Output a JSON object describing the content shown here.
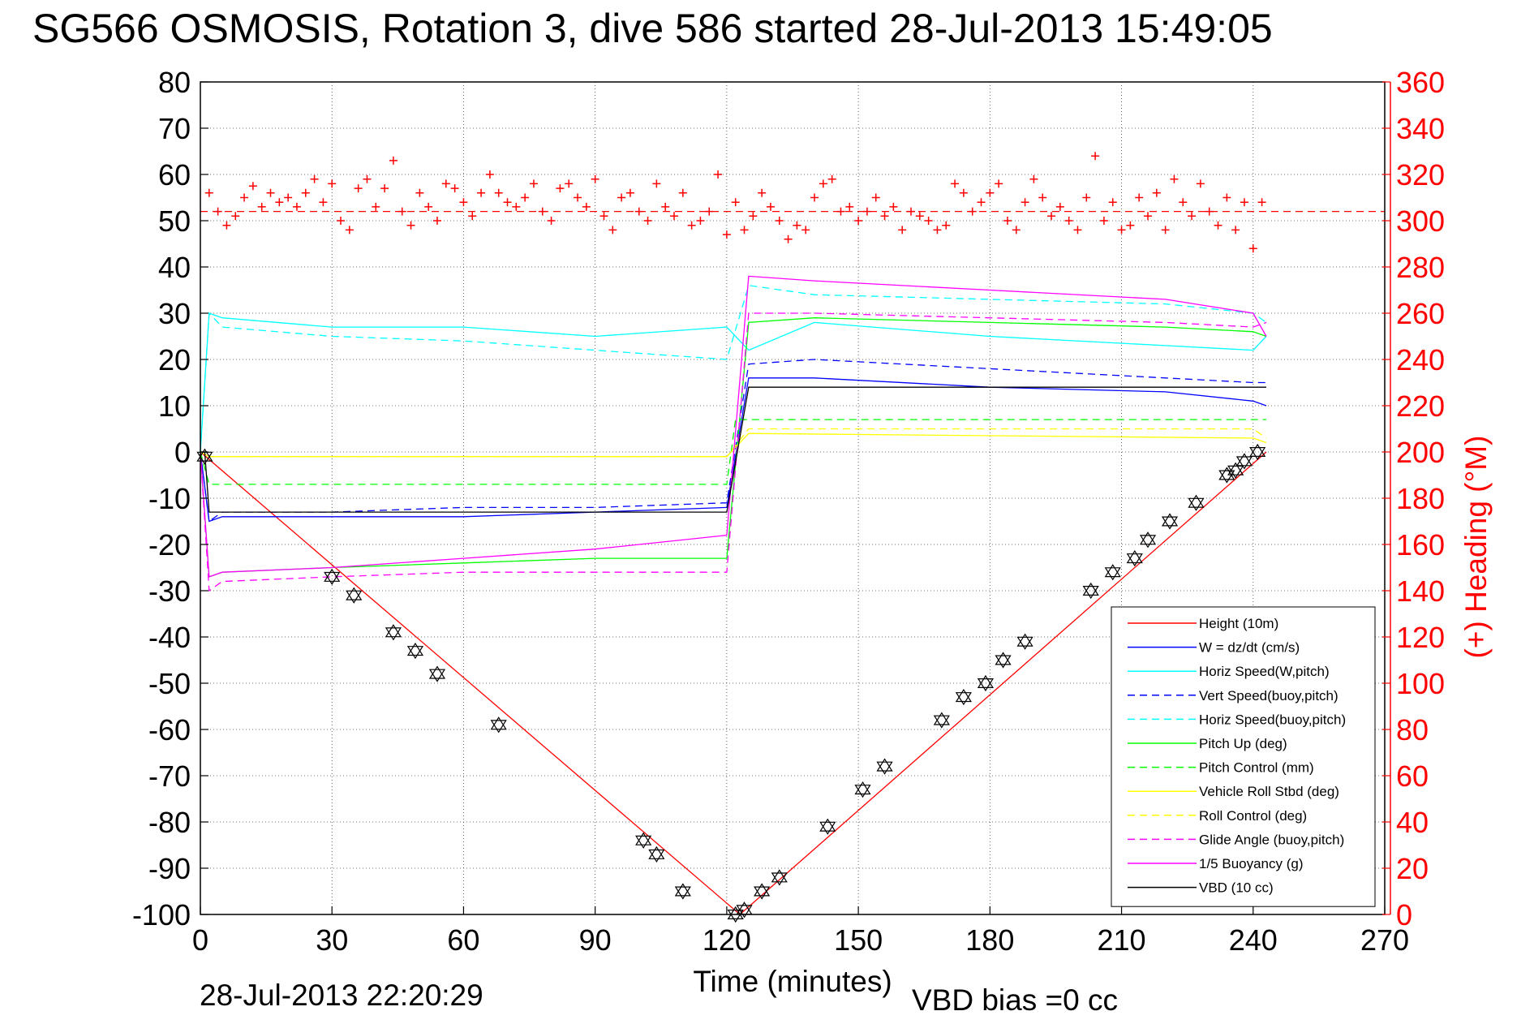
{
  "title": "SG566 OSMOSIS, Rotation 3, dive 586 started 28-Jul-2013 15:49:05",
  "footer_left": "28-Jul-2013 22:20:29",
  "footer_right": "VBD bias =0 cc",
  "chart_data": {
    "type": "line",
    "xlabel": "Time (minutes)",
    "ylabel_left": "",
    "ylabel_right": "(+) Heading (°M)",
    "xlim": [
      0,
      270
    ],
    "ylim_left": [
      -100,
      80
    ],
    "ylim_right": [
      0,
      360
    ],
    "xticks": [
      0,
      30,
      60,
      90,
      120,
      150,
      180,
      210,
      240,
      270
    ],
    "yticks_left": [
      80,
      70,
      60,
      50,
      40,
      30,
      20,
      10,
      0,
      -10,
      -20,
      -30,
      -40,
      -50,
      -60,
      -70,
      -80,
      -90,
      -100
    ],
    "yticks_right": [
      360,
      340,
      320,
      300,
      280,
      260,
      240,
      220,
      200,
      180,
      160,
      140,
      120,
      100,
      80,
      60,
      40,
      20,
      0
    ],
    "grid": true,
    "legend_position": "bottom-right",
    "colors": {
      "red": "#ff0000",
      "blue": "#0000ff",
      "cyan": "#00ffff",
      "green": "#00ff00",
      "yellow": "#ffff00",
      "magenta": "#ff00ff",
      "black": "#000000"
    },
    "series": [
      {
        "name": "Height (10m)",
        "color": "#ff0000",
        "dash": "solid",
        "x": [
          0,
          123,
          243
        ],
        "y": [
          0,
          -100,
          0
        ]
      },
      {
        "name": "W = dz/dt (cm/s)",
        "color": "#0000ff",
        "dash": "solid",
        "x": [
          0,
          2,
          5,
          30,
          60,
          90,
          120,
          125,
          140,
          180,
          220,
          240,
          243
        ],
        "y": [
          0,
          -15,
          -14,
          -14,
          -14,
          -13,
          -12,
          16,
          16,
          14,
          13,
          11,
          10
        ]
      },
      {
        "name": "Horiz Speed(W,pitch)",
        "color": "#00ffff",
        "dash": "solid",
        "x": [
          0,
          2,
          5,
          30,
          60,
          90,
          120,
          125,
          140,
          180,
          220,
          240,
          243
        ],
        "y": [
          0,
          30,
          29,
          27,
          27,
          25,
          27,
          22,
          28,
          25,
          23,
          22,
          25
        ]
      },
      {
        "name": "Vert Speed(buoy,pitch)",
        "color": "#0000ff",
        "dash": "dashed",
        "x": [
          0,
          2,
          5,
          30,
          60,
          90,
          120,
          125,
          140,
          180,
          220,
          240,
          243
        ],
        "y": [
          0,
          -15,
          -13,
          -13,
          -12,
          -12,
          -11,
          19,
          20,
          18,
          16,
          15,
          15
        ]
      },
      {
        "name": "Horiz Speed(buoy,pitch)",
        "color": "#00ffff",
        "dash": "dashed",
        "x": [
          0,
          2,
          5,
          30,
          60,
          90,
          120,
          125,
          140,
          180,
          220,
          240,
          243
        ],
        "y": [
          0,
          30,
          27,
          25,
          24,
          22,
          20,
          36,
          34,
          33,
          32,
          30,
          28
        ]
      },
      {
        "name": "Pitch Up (deg)",
        "color": "#00ff00",
        "dash": "solid",
        "x": [
          0,
          2,
          5,
          30,
          60,
          90,
          120,
          125,
          140,
          180,
          220,
          240,
          243
        ],
        "y": [
          0,
          -27,
          -26,
          -25,
          -24,
          -23,
          -23,
          28,
          29,
          28,
          27,
          26,
          25
        ]
      },
      {
        "name": "Pitch Control (mm)",
        "color": "#00ff00",
        "dash": "dashed",
        "x": [
          0,
          2,
          120,
          122,
          243
        ],
        "y": [
          0,
          -7,
          -7,
          7,
          7
        ]
      },
      {
        "name": "Vehicle Roll Stbd (deg)",
        "color": "#ffff00",
        "dash": "solid",
        "x": [
          0,
          2,
          120,
          125,
          240,
          243
        ],
        "y": [
          0,
          -1,
          -1,
          4,
          3,
          2
        ]
      },
      {
        "name": "Roll Control (deg)",
        "color": "#ffff00",
        "dash": "dashed",
        "x": [
          0,
          2,
          120,
          125,
          240,
          243
        ],
        "y": [
          0,
          -1,
          -1,
          5,
          5,
          3
        ]
      },
      {
        "name": "Glide Angle (buoy,pitch)",
        "color": "#ff00ff",
        "dash": "dashed",
        "x": [
          0,
          2,
          5,
          30,
          60,
          90,
          120,
          125,
          140,
          180,
          220,
          240,
          243
        ],
        "y": [
          0,
          -30,
          -28,
          -27,
          -26,
          -26,
          -26,
          30,
          30,
          29,
          28,
          27,
          28
        ]
      },
      {
        "name": "1/5 Buoyancy (g)",
        "color": "#ff00ff",
        "dash": "solid",
        "x": [
          0,
          2,
          5,
          30,
          60,
          90,
          120,
          125,
          140,
          180,
          220,
          240,
          243
        ],
        "y": [
          0,
          -27,
          -26,
          -25,
          -23,
          -21,
          -18,
          38,
          37,
          35,
          33,
          30,
          25
        ]
      },
      {
        "name": "VBD (10 cc)",
        "color": "#000000",
        "dash": "solid",
        "x": [
          0,
          1,
          2,
          120,
          125,
          243
        ],
        "y": [
          0,
          0,
          -13,
          -13,
          14,
          14
        ]
      }
    ],
    "heading_mean_deg": 304,
    "heading_points": {
      "axis": "right",
      "x": [
        2,
        4,
        6,
        8,
        10,
        12,
        14,
        16,
        18,
        20,
        22,
        24,
        26,
        28,
        30,
        32,
        34,
        36,
        38,
        40,
        42,
        44,
        46,
        48,
        50,
        52,
        54,
        56,
        58,
        60,
        62,
        64,
        66,
        68,
        70,
        72,
        74,
        76,
        78,
        80,
        82,
        84,
        86,
        88,
        90,
        92,
        94,
        96,
        98,
        100,
        102,
        104,
        106,
        108,
        110,
        112,
        114,
        116,
        118,
        120,
        122,
        124,
        126,
        128,
        130,
        132,
        134,
        136,
        138,
        140,
        142,
        144,
        146,
        148,
        150,
        152,
        154,
        156,
        158,
        160,
        162,
        164,
        166,
        168,
        170,
        172,
        174,
        176,
        178,
        180,
        182,
        184,
        186,
        188,
        190,
        192,
        194,
        196,
        198,
        200,
        202,
        204,
        206,
        208,
        210,
        212,
        214,
        216,
        218,
        220,
        222,
        224,
        226,
        228,
        230,
        232,
        234,
        236,
        238,
        240,
        242
      ],
      "y": [
        312,
        304,
        298,
        302,
        310,
        315,
        306,
        312,
        308,
        310,
        306,
        312,
        318,
        308,
        316,
        300,
        296,
        314,
        318,
        306,
        314,
        326,
        304,
        298,
        312,
        306,
        300,
        316,
        314,
        308,
        302,
        312,
        320,
        312,
        308,
        306,
        310,
        316,
        304,
        300,
        314,
        316,
        310,
        306,
        318,
        302,
        296,
        310,
        312,
        304,
        300,
        316,
        306,
        302,
        312,
        298,
        300,
        304,
        320,
        294,
        308,
        296,
        302,
        312,
        306,
        300,
        292,
        298,
        296,
        310,
        316,
        318,
        304,
        306,
        300,
        304,
        310,
        302,
        306,
        296,
        304,
        302,
        300,
        296,
        298,
        316,
        312,
        304,
        308,
        312,
        316,
        300,
        296,
        308,
        318,
        310,
        302,
        306,
        300,
        296,
        310,
        328,
        300,
        308,
        296,
        298,
        310,
        302,
        312,
        296,
        318,
        308,
        302,
        316,
        304,
        298,
        310,
        296,
        308,
        288,
        308
      ]
    },
    "transition_markers": {
      "x": [
        1,
        30,
        35,
        44,
        49,
        54,
        68,
        101,
        104,
        110,
        122,
        124,
        128,
        132,
        143,
        151,
        156,
        169,
        174,
        179,
        183,
        188,
        203,
        208,
        213,
        216,
        221,
        227,
        234,
        236,
        238,
        241
      ],
      "y": [
        -1,
        -27,
        -31,
        -39,
        -43,
        -48,
        -59,
        -84,
        -87,
        -95,
        -100,
        -99,
        -95,
        -92,
        -81,
        -73,
        -68,
        -58,
        -53,
        -50,
        -45,
        -41,
        -30,
        -26,
        -23,
        -19,
        -15,
        -11,
        -5,
        -4,
        -2,
        0
      ]
    }
  }
}
